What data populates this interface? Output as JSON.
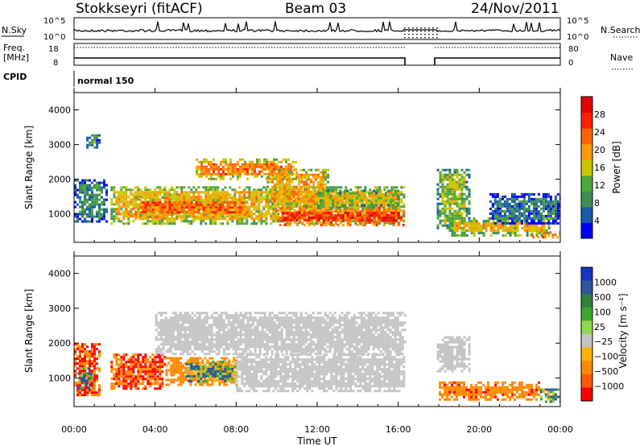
{
  "header": {
    "station": "Stokkseyri (fitACF)",
    "beam": "Beam 03",
    "date": "24/Nov/2011"
  },
  "noise_panel": {
    "left_label": "N.Sky",
    "left_ticks": [
      "10^5",
      "10^0"
    ],
    "right_label": "N.Search",
    "right_ticks": [
      "10^5",
      "10^0"
    ]
  },
  "freq_panel": {
    "left_label_1": "Freq.",
    "left_label_2": "[MHz]",
    "left_ticks": [
      "18",
      "8"
    ],
    "right_label": "Nave",
    "right_ticks": [
      "80",
      "0"
    ]
  },
  "cpid_panel": {
    "label": "CPID",
    "mode_text": "normal 150"
  },
  "colors": {
    "power_scale": [
      "#0000ff",
      "#1a5aa8",
      "#3f8f55",
      "#4fa83a",
      "#c9c800",
      "#ff9a00",
      "#ff6400",
      "#ff2000",
      "#e60000"
    ],
    "velocity_scale": [
      "#1536c2",
      "#2c55a0",
      "#2f7f3f",
      "#3fa72e",
      "#8fd84f",
      "#c3c3c3",
      "#ffb300",
      "#ff8a00",
      "#ff5a00",
      "#ff0000"
    ],
    "ground_scatter": "#c3c3c3"
  },
  "chart_data": [
    {
      "type": "heatmap",
      "panel": "power",
      "xlabel": "Time UT",
      "ylabel": "Slant Range [km]",
      "xlim": [
        0,
        24
      ],
      "ylim": [
        180,
        4500
      ],
      "y_ticks": [
        "1000",
        "2000",
        "3000",
        "4000"
      ],
      "x_ticks": [
        "00:00",
        "04:00",
        "08:00",
        "12:00",
        "16:00",
        "20:00",
        "00:00"
      ],
      "colorbar": {
        "label": "Power [dB]",
        "range": [
          0,
          32
        ],
        "ticks": [
          "4",
          "8",
          "12",
          "16",
          "20",
          "24",
          "28"
        ]
      },
      "data_gap": [
        16.3,
        17.9
      ],
      "regions": [
        {
          "t": [
            0.0,
            1.6
          ],
          "r": [
            800,
            2000
          ],
          "power": 8
        },
        {
          "t": [
            0.6,
            1.3
          ],
          "r": [
            2900,
            3300
          ],
          "power": 12
        },
        {
          "t": [
            1.8,
            16.3
          ],
          "r": [
            700,
            1800
          ],
          "power": 18
        },
        {
          "t": [
            3.0,
            8.5
          ],
          "r": [
            900,
            1500
          ],
          "power": 24
        },
        {
          "t": [
            6.0,
            11.0
          ],
          "r": [
            2000,
            2600
          ],
          "power": 22
        },
        {
          "t": [
            10.0,
            16.3
          ],
          "r": [
            700,
            1200
          ],
          "power": 28
        },
        {
          "t": [
            9.5,
            12.5
          ],
          "r": [
            1200,
            2300
          ],
          "power": 20
        },
        {
          "t": [
            12.0,
            16.0
          ],
          "r": [
            1200,
            1700
          ],
          "power": 16
        },
        {
          "t": [
            17.9,
            19.5
          ],
          "r": [
            600,
            2300
          ],
          "power": 14
        },
        {
          "t": [
            18.5,
            23.5
          ],
          "r": [
            400,
            900
          ],
          "power": 18
        },
        {
          "t": [
            22.5,
            24.0
          ],
          "r": [
            300,
            500
          ],
          "power": 28
        },
        {
          "t": [
            20.5,
            24.0
          ],
          "r": [
            700,
            1600
          ],
          "power": 6
        }
      ]
    },
    {
      "type": "heatmap",
      "panel": "velocity",
      "xlabel": "Time UT",
      "ylabel": "Slant Range [km]",
      "xlim": [
        0,
        24
      ],
      "ylim": [
        180,
        4500
      ],
      "y_ticks": [
        "1000",
        "2000",
        "3000",
        "4000"
      ],
      "x_ticks": [
        "00:00",
        "04:00",
        "08:00",
        "12:00",
        "16:00",
        "20:00",
        "00:00"
      ],
      "colorbar": {
        "label": "Velocity [m s⁻¹]",
        "ticks": [
          "1000",
          "500",
          "100",
          "25",
          "−25",
          "−100",
          "−500",
          "−1000"
        ]
      },
      "data_gap": [
        16.3,
        17.9
      ],
      "regions": [
        {
          "t": [
            0.0,
            1.2
          ],
          "r": [
            500,
            2000
          ],
          "velocity": -500
        },
        {
          "t": [
            0.2,
            0.8
          ],
          "r": [
            700,
            1300
          ],
          "velocity": 100
        },
        {
          "t": [
            1.8,
            4.5
          ],
          "r": [
            700,
            1700
          ],
          "velocity": -500
        },
        {
          "t": [
            4.5,
            8.0
          ],
          "r": [
            800,
            1600
          ],
          "velocity": -300
        },
        {
          "t": [
            5.5,
            8.0
          ],
          "r": [
            900,
            1500
          ],
          "velocity": 50
        },
        {
          "t": [
            4.0,
            16.3
          ],
          "r": [
            1700,
            2900
          ],
          "ground_scatter": true
        },
        {
          "t": [
            8.0,
            16.3
          ],
          "r": [
            600,
            1700
          ],
          "ground_scatter": true
        },
        {
          "t": [
            17.9,
            19.5
          ],
          "r": [
            1200,
            2200
          ],
          "ground_scatter": true
        },
        {
          "t": [
            18.0,
            23.0
          ],
          "r": [
            400,
            900
          ],
          "velocity": -400
        },
        {
          "t": [
            23.0,
            24.0
          ],
          "r": [
            300,
            700
          ],
          "velocity": 50
        }
      ]
    }
  ]
}
